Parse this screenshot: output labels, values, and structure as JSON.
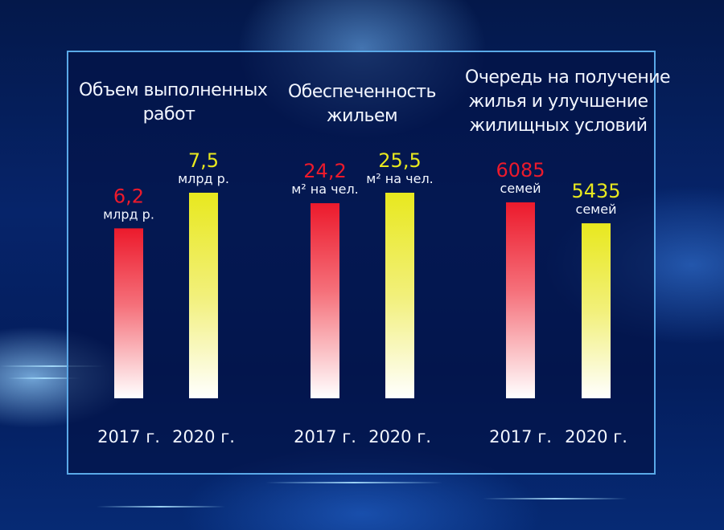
{
  "chart_data": [
    {
      "type": "bar",
      "title": "Объем выполненных работ",
      "categories": [
        "2017 г.",
        "2020 г."
      ],
      "values": [
        6.2,
        7.5
      ],
      "value_labels": [
        "6,2",
        "7,5"
      ],
      "unit_labels": [
        "млрд р.",
        "млрд р."
      ],
      "colors": [
        "#ec1a2c",
        "#e8e81e"
      ]
    },
    {
      "type": "bar",
      "title": "Обеспеченность жильем",
      "categories": [
        "2017 г.",
        "2020 г."
      ],
      "values": [
        24.2,
        25.5
      ],
      "value_labels": [
        "24,2",
        "25,5"
      ],
      "unit_labels": [
        "м² на чел.",
        "м² на чел."
      ],
      "colors": [
        "#ec1a2c",
        "#e8e81e"
      ]
    },
    {
      "type": "bar",
      "title": "Очередь на получение жилья и улучшение жилищных условий",
      "categories": [
        "2017 г.",
        "2020 г."
      ],
      "values": [
        6085,
        5435
      ],
      "value_labels": [
        "6085",
        "5435"
      ],
      "unit_labels": [
        "семей",
        "семей"
      ],
      "colors": [
        "#ec1a2c",
        "#e8e81e"
      ]
    }
  ],
  "titles": {
    "work": [
      "Объем выполненных",
      "работ"
    ],
    "housing": [
      "Обеспеченность",
      "жильем"
    ],
    "queue": [
      "Очередь на получение",
      "жилья и улучшение",
      "жилищных условий"
    ]
  }
}
